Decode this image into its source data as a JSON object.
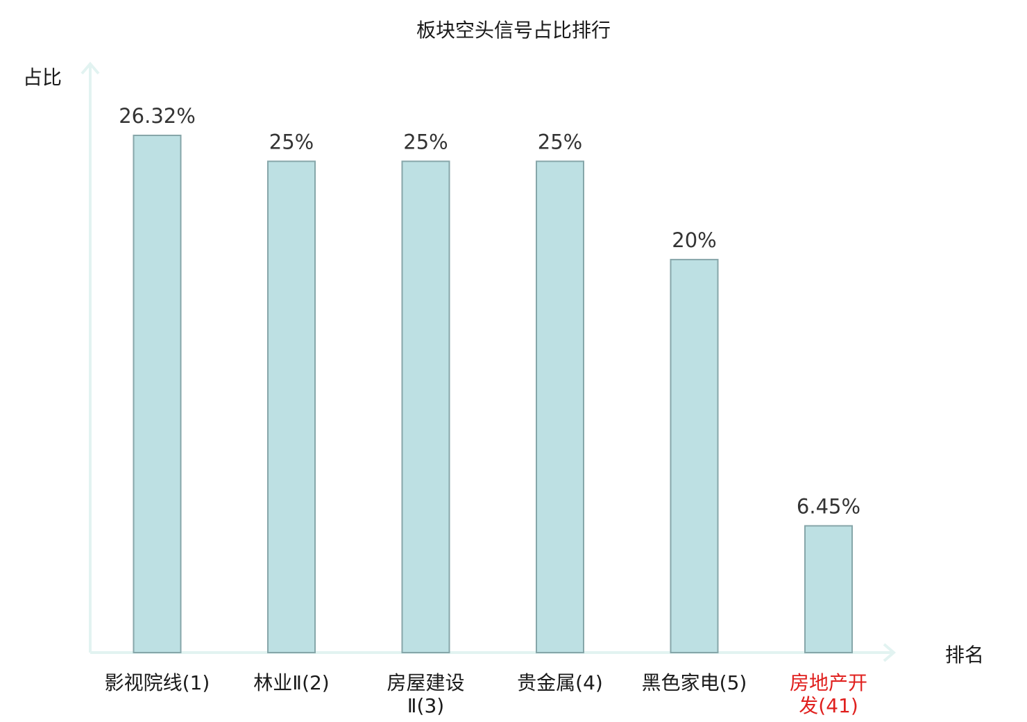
{
  "chart_data": {
    "type": "bar",
    "title": "板块空头信号占比排行",
    "ylabel": "占比",
    "xlabel": "排名",
    "categories": [
      {
        "name": "影视院线",
        "rank": "(1)"
      },
      {
        "name": "林业Ⅱ",
        "rank": "(2)"
      },
      {
        "name": "房屋建设Ⅱ",
        "rank": "(3)"
      },
      {
        "name": "贵金属",
        "rank": "(4)"
      },
      {
        "name": "黑色家电",
        "rank": "(5)"
      },
      {
        "name": "房地产开发",
        "rank": "(41)"
      }
    ],
    "values": [
      26.32,
      25,
      25,
      25,
      20,
      6.45
    ],
    "value_labels": [
      "26.32%",
      "25%",
      "25%",
      "25%",
      "20%",
      "6.45%"
    ],
    "highlight_index": 5,
    "ylim": [
      0,
      30
    ],
    "grid": false,
    "colors": {
      "bar_fill": "#bde0e3",
      "bar_stroke": "#86a6a9",
      "axis": "#e2f3f1",
      "label_default": "#1a1a1a",
      "label_highlight": "#e0201e"
    }
  }
}
